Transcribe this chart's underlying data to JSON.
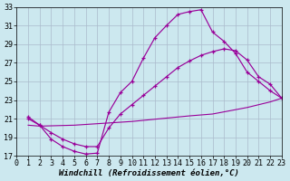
{
  "background_color": "#cce8ef",
  "grid_color": "#aabbcc",
  "line_color": "#990099",
  "xlim": [
    0,
    23
  ],
  "ylim": [
    17,
    33
  ],
  "yticks": [
    17,
    19,
    21,
    23,
    25,
    27,
    29,
    31,
    33
  ],
  "xticks": [
    0,
    1,
    2,
    3,
    4,
    5,
    6,
    7,
    8,
    9,
    10,
    11,
    12,
    13,
    14,
    15,
    16,
    17,
    18,
    19,
    20,
    21,
    22,
    23
  ],
  "line1_x": [
    1,
    2,
    3,
    4,
    5,
    6,
    7,
    8,
    9,
    10,
    11,
    12,
    13,
    14,
    15,
    16,
    17,
    18,
    19,
    20,
    21,
    22,
    23
  ],
  "line1_y": [
    21.2,
    20.3,
    18.8,
    18.0,
    17.5,
    17.2,
    17.3,
    21.7,
    23.8,
    25.0,
    27.5,
    29.7,
    31.0,
    32.2,
    32.5,
    32.7,
    30.3,
    29.3,
    28.0,
    26.0,
    25.0,
    24.0,
    23.2
  ],
  "line2_x": [
    1,
    2,
    3,
    4,
    5,
    6,
    7,
    8,
    9,
    10,
    11,
    12,
    13,
    14,
    15,
    16,
    17,
    18,
    19,
    20,
    21,
    22,
    23
  ],
  "line2_y": [
    21.0,
    20.3,
    19.5,
    18.8,
    18.3,
    18.0,
    18.0,
    20.0,
    21.5,
    22.5,
    23.5,
    24.5,
    25.5,
    26.5,
    27.2,
    27.8,
    28.2,
    28.5,
    28.3,
    27.3,
    25.5,
    24.7,
    23.2
  ],
  "line3_x": [
    1,
    2,
    5,
    10,
    15,
    17,
    20,
    22,
    23
  ],
  "line3_y": [
    20.3,
    20.2,
    20.3,
    20.7,
    21.3,
    21.5,
    22.2,
    22.8,
    23.2
  ],
  "xlabel": "Windchill (Refroidissement éolien,°C)",
  "xlabel_fontsize": 6.5,
  "tick_fontsize": 6
}
